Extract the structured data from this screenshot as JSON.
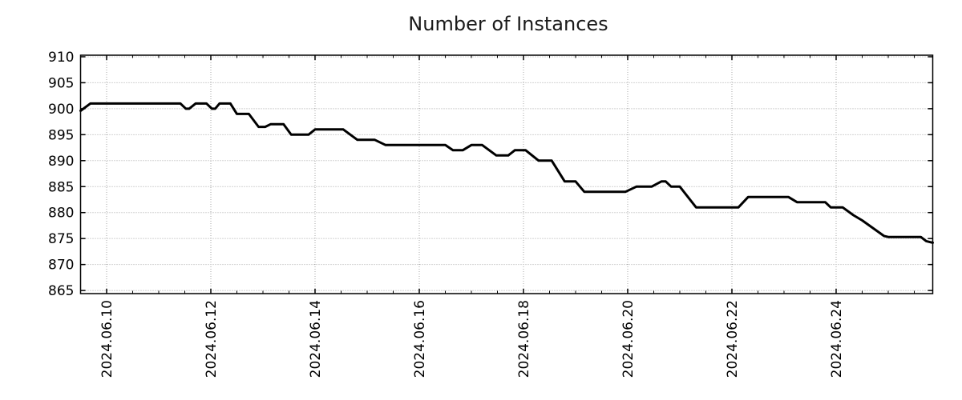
{
  "title": "Number of Instances",
  "chart_data": {
    "type": "line",
    "title": "Number of Instances",
    "xlabel": "",
    "ylabel": "",
    "grid": "dotted",
    "legend": "none",
    "background_color": "#ffffff",
    "grid_color": "#a6a6a6",
    "axis_color": "#000000",
    "line_color": "#000000",
    "line_width": 3,
    "ylim": [
      864.4,
      910.3
    ],
    "yticks": [
      865,
      870,
      875,
      880,
      885,
      890,
      895,
      900,
      905,
      910
    ],
    "xlim": [
      "2024-06-09 12:00",
      "2024-06-25 20:30"
    ],
    "minor_tick_hours": 12,
    "xticks": [
      {
        "label": "2024.06.10",
        "t": "2024-06-10 00:00"
      },
      {
        "label": "2024.06.12",
        "t": "2024-06-12 00:00"
      },
      {
        "label": "2024.06.14",
        "t": "2024-06-14 00:00"
      },
      {
        "label": "2024.06.16",
        "t": "2024-06-16 00:00"
      },
      {
        "label": "2024.06.18",
        "t": "2024-06-18 00:00"
      },
      {
        "label": "2024.06.20",
        "t": "2024-06-20 00:00"
      },
      {
        "label": "2024.06.22",
        "t": "2024-06-22 00:00"
      },
      {
        "label": "2024.06.24",
        "t": "2024-06-24 00:00"
      }
    ],
    "series": [
      {
        "name": "Number of Instances",
        "color": "#000000",
        "points": [
          [
            "2024-06-09 12:00",
            899.6
          ],
          [
            "2024-06-09 16:30",
            901
          ],
          [
            "2024-06-11 10:00",
            901
          ],
          [
            "2024-06-11 12:30",
            900
          ],
          [
            "2024-06-11 14:00",
            900
          ],
          [
            "2024-06-11 17:00",
            901
          ],
          [
            "2024-06-11 22:00",
            901
          ],
          [
            "2024-06-12 00:30",
            900
          ],
          [
            "2024-06-12 02:00",
            900
          ],
          [
            "2024-06-12 04:00",
            901
          ],
          [
            "2024-06-12 09:00",
            901
          ],
          [
            "2024-06-12 12:00",
            899
          ],
          [
            "2024-06-12 17:30",
            899
          ],
          [
            "2024-06-12 22:00",
            896.5
          ],
          [
            "2024-06-13 01:00",
            896.5
          ],
          [
            "2024-06-13 03:30",
            897
          ],
          [
            "2024-06-13 09:30",
            897
          ],
          [
            "2024-06-13 13:00",
            895
          ],
          [
            "2024-06-13 21:00",
            895
          ],
          [
            "2024-06-14 00:00",
            896
          ],
          [
            "2024-06-14 13:00",
            896
          ],
          [
            "2024-06-14 19:30",
            894
          ],
          [
            "2024-06-15 03:30",
            894
          ],
          [
            "2024-06-15 08:30",
            893
          ],
          [
            "2024-06-16 12:00",
            893
          ],
          [
            "2024-06-16 15:30",
            892
          ],
          [
            "2024-06-16 20:00",
            892
          ],
          [
            "2024-06-17 00:00",
            893
          ],
          [
            "2024-06-17 05:00",
            893
          ],
          [
            "2024-06-17 11:30",
            891
          ],
          [
            "2024-06-17 17:00",
            891
          ],
          [
            "2024-06-17 20:00",
            892
          ],
          [
            "2024-06-18 01:00",
            892
          ],
          [
            "2024-06-18 07:00",
            890
          ],
          [
            "2024-06-18 13:00",
            890
          ],
          [
            "2024-06-18 19:00",
            886
          ],
          [
            "2024-06-19 00:00",
            886
          ],
          [
            "2024-06-19 04:00",
            884
          ],
          [
            "2024-06-19 23:00",
            884
          ],
          [
            "2024-06-20 04:00",
            885
          ],
          [
            "2024-06-20 11:00",
            885
          ],
          [
            "2024-06-20 15:30",
            886
          ],
          [
            "2024-06-20 17:30",
            886
          ],
          [
            "2024-06-20 20:00",
            885
          ],
          [
            "2024-06-21 00:00",
            885
          ],
          [
            "2024-06-21 07:30",
            881
          ],
          [
            "2024-06-22 03:00",
            881
          ],
          [
            "2024-06-22 07:30",
            883
          ],
          [
            "2024-06-23 02:00",
            883
          ],
          [
            "2024-06-23 06:00",
            882
          ],
          [
            "2024-06-23 19:00",
            882
          ],
          [
            "2024-06-23 21:30",
            881
          ],
          [
            "2024-06-24 03:00",
            881
          ],
          [
            "2024-06-24 08:00",
            879.5
          ],
          [
            "2024-06-24 12:00",
            878.5
          ],
          [
            "2024-06-24 22:00",
            875.5
          ],
          [
            "2024-06-25 00:00",
            875.3
          ],
          [
            "2024-06-25 15:00",
            875.3
          ],
          [
            "2024-06-25 17:30",
            874.5
          ],
          [
            "2024-06-25 20:30",
            874.2
          ]
        ]
      }
    ]
  }
}
